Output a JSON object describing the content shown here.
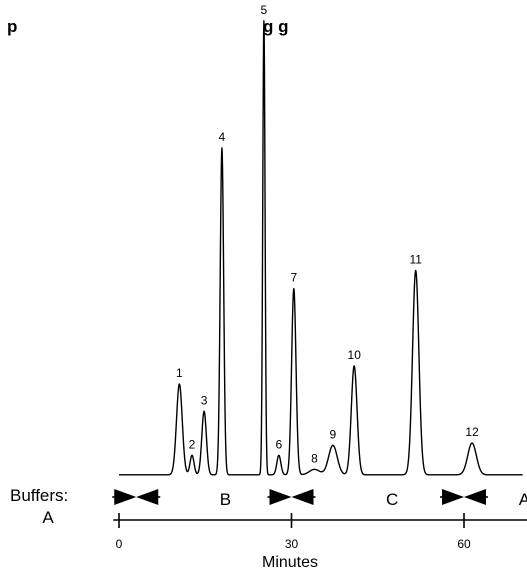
{
  "chart_data": {
    "type": "line",
    "title": "p                                                    g g",
    "xlabel": "Minutes",
    "ylabel": "",
    "xlim": [
      -1,
      71
    ],
    "ylim": [
      0,
      1
    ],
    "x_ticks": [
      {
        "value": 0,
        "label": "0"
      },
      {
        "value": 30,
        "label": "30"
      },
      {
        "value": 60,
        "label": "60"
      }
    ],
    "baseline": 0.018,
    "peaks": [
      {
        "label": "1",
        "x": 10.5,
        "height": 0.2,
        "width": 0.5
      },
      {
        "label": "2",
        "x": 12.7,
        "height": 0.043,
        "width": 0.35
      },
      {
        "label": "3",
        "x": 14.8,
        "height": 0.14,
        "width": 0.4
      },
      {
        "label": "4",
        "x": 17.9,
        "height": 0.72,
        "width": 0.3
      },
      {
        "label": "5",
        "x": 25.2,
        "height": 1.0,
        "width": 0.2
      },
      {
        "label": "6",
        "x": 27.8,
        "height": 0.043,
        "width": 0.35
      },
      {
        "label": "7",
        "x": 30.4,
        "height": 0.41,
        "width": 0.38
      },
      {
        "label": "8",
        "x": 34.0,
        "height": 0.012,
        "width": 0.9
      },
      {
        "label": "9",
        "x": 37.2,
        "height": 0.065,
        "width": 0.75
      },
      {
        "label": "10",
        "x": 40.9,
        "height": 0.24,
        "width": 0.5
      },
      {
        "label": "11",
        "x": 51.6,
        "height": 0.45,
        "width": 0.55
      },
      {
        "label": "12",
        "x": 61.4,
        "height": 0.07,
        "width": 0.75
      }
    ],
    "buffers": {
      "label": "Buffers:",
      "segments": [
        {
          "label": "A",
          "x": -4
        },
        {
          "label": "B",
          "x": 18.5
        },
        {
          "label": "C",
          "x": 47.5
        },
        {
          "label": "A",
          "x": 70.5
        }
      ],
      "transitions": [
        3,
        30,
        60
      ]
    }
  }
}
